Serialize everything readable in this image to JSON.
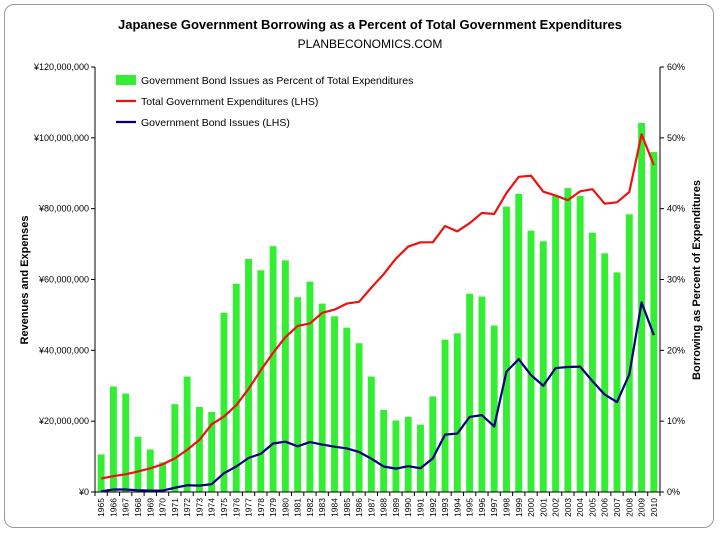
{
  "chart_data": {
    "type": "bar",
    "title": "Japanese Government Borrowing as a Percent of Total Government Expenditures",
    "subtitle": "PLANBECONOMICS.COM",
    "ylabel_left": "Revenues and Expenses",
    "ylabel_right": "Borrowing as Percent of Expenditures",
    "ylim_left": [
      0,
      120000000
    ],
    "ylim_right": [
      0,
      60
    ],
    "left_ticks": [
      "¥0",
      "¥20,000,000",
      "¥40,000,000",
      "¥60,000,000",
      "¥80,000,000",
      "¥100,000,000",
      "¥120,000,000"
    ],
    "right_ticks": [
      "0%",
      "10%",
      "20%",
      "30%",
      "40%",
      "50%",
      "60%"
    ],
    "grid": false,
    "legend_position": "top-left",
    "categories": [
      "1965",
      "1966",
      "1967",
      "1968",
      "1969",
      "1970",
      "1971",
      "1972",
      "1973",
      "1974",
      "1975",
      "1976",
      "1977",
      "1978",
      "1979",
      "1980",
      "1981",
      "1982",
      "1983",
      "1984",
      "1985",
      "1986",
      "1987",
      "1988",
      "1989",
      "1990",
      "1991",
      "1992",
      "1993",
      "1994",
      "1995",
      "1996",
      "1997",
      "1998",
      "1999",
      "2000",
      "2001",
      "2002",
      "2003",
      "2004",
      "2005",
      "2006",
      "2007",
      "2008",
      "2009",
      "2010"
    ],
    "series": [
      {
        "name": "Government Bond Issues as Percent of Total Expenditures",
        "kind": "bar",
        "axis": "right",
        "color": "#33ee33",
        "values": [
          5.3,
          14.9,
          13.9,
          7.8,
          6.0,
          4.2,
          12.4,
          16.3,
          12.0,
          11.3,
          25.3,
          29.4,
          32.9,
          31.3,
          34.7,
          32.7,
          27.5,
          29.7,
          26.6,
          24.8,
          23.2,
          21.0,
          16.3,
          11.6,
          10.1,
          10.6,
          9.5,
          13.5,
          21.5,
          22.4,
          28.0,
          27.6,
          23.5,
          40.3,
          42.1,
          36.9,
          35.4,
          41.8,
          42.9,
          41.8,
          36.6,
          33.7,
          31.0,
          39.2,
          52.1,
          48.0
        ]
      },
      {
        "name": "Total Government Expenditures (LHS)",
        "kind": "line",
        "axis": "left",
        "color": "#ee1111",
        "values": [
          3800000,
          4500000,
          5000000,
          5800000,
          6700000,
          7800000,
          9500000,
          11900000,
          14700000,
          19100000,
          21300000,
          24500000,
          29100000,
          34400000,
          39300000,
          43700000,
          46900000,
          47600000,
          50600000,
          51500000,
          53200000,
          53700000,
          57700000,
          61500000,
          65900000,
          69300000,
          70500000,
          70500000,
          75100000,
          73600000,
          75900000,
          78800000,
          78500000,
          84400000,
          89000000,
          89300000,
          84800000,
          83700000,
          82400000,
          84900000,
          85500000,
          81400000,
          81800000,
          84700000,
          101000000,
          92300000
        ]
      },
      {
        "name": "Government Bond Issues (LHS)",
        "kind": "line",
        "axis": "left",
        "color": "#000080",
        "values": [
          200000,
          700000,
          700000,
          500000,
          400000,
          400000,
          1200000,
          1900000,
          1800000,
          2200000,
          5300000,
          7200000,
          9600000,
          10800000,
          13700000,
          14200000,
          12900000,
          14100000,
          13400000,
          12800000,
          12300000,
          11300000,
          9400000,
          7200000,
          6600000,
          7300000,
          6700000,
          9500000,
          16200000,
          16500000,
          21200000,
          21700000,
          18500000,
          34000000,
          37500000,
          33000000,
          30000000,
          35000000,
          35300000,
          35400000,
          31300000,
          27500000,
          25400000,
          33200000,
          53500000,
          44300000
        ]
      }
    ]
  }
}
